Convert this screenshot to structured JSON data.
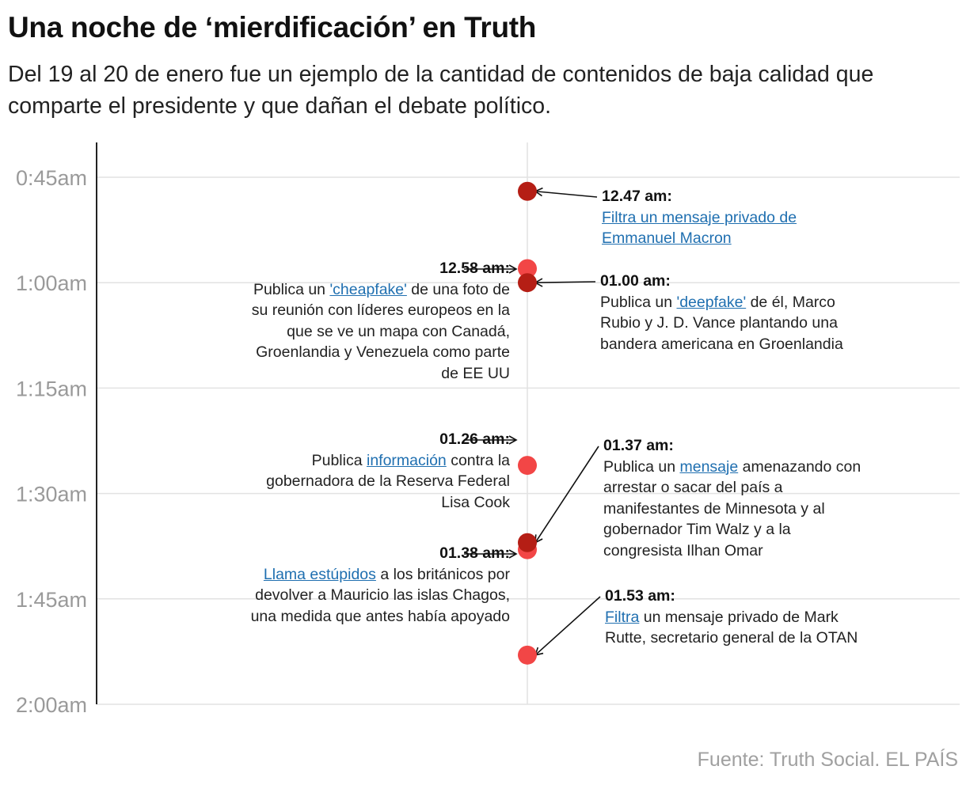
{
  "title": "Una noche de ‘mierdificación’ en Truth",
  "subtitle": "Del 19 al 20 de enero fue un ejemplo de la cantidad de contenidos de baja calidad que comparte el presidente y que dañan el debate político.",
  "source": "Fuente: Truth Social. EL PAÍS",
  "colors": {
    "dark_dot": "#b51e15",
    "light_dot": "#f24646",
    "grid": "#e2e2e2",
    "axis": "#222222",
    "link": "#1f6fb0"
  },
  "chart_data": {
    "type": "scatter",
    "y_axis": {
      "min_minutes_after_midnight": 40,
      "max_minutes_after_midnight": 120,
      "ticks": [
        {
          "minutes": 45,
          "label": "0:45am"
        },
        {
          "minutes": 60,
          "label": "1:00am"
        },
        {
          "minutes": 75,
          "label": "1:15am"
        },
        {
          "minutes": 90,
          "label": "1:30am"
        },
        {
          "minutes": 105,
          "label": "1:45am"
        },
        {
          "minutes": 120,
          "label": "2:00am"
        }
      ],
      "grid": true
    },
    "events": [
      {
        "time": "12.47 am:",
        "minutes": 47,
        "dot": "dark",
        "side": "right",
        "parts": [
          {
            "text": "Filtra un mensaje privado de Emmanuel Macron",
            "link": true
          }
        ]
      },
      {
        "time": "12.58 am:",
        "minutes": 58,
        "dot": "light",
        "side": "left",
        "parts": [
          {
            "text": "Publica un "
          },
          {
            "text": "'cheapfake'",
            "link": true
          },
          {
            "text": " de una foto de su reunión con líderes europeos en la que se ve un mapa con Canadá, Groenlandia y Venezuela como parte de EE UU"
          }
        ]
      },
      {
        "time": "01.00 am:",
        "minutes": 60,
        "dot": "dark",
        "side": "right",
        "parts": [
          {
            "text": "Publica un "
          },
          {
            "text": "'deepfake'",
            "link": true
          },
          {
            "text": " de él, Marco Rubio y J. D. Vance plantando una bandera americana en Groenlandia"
          }
        ]
      },
      {
        "time": "01.26 am:",
        "minutes": 86,
        "dot": "light",
        "side": "left",
        "parts": [
          {
            "text": "Publica "
          },
          {
            "text": "información",
            "link": true
          },
          {
            "text": " contra la gobernadora de la Reserva Federal Lisa Cook"
          }
        ]
      },
      {
        "time": "01.37 am:",
        "minutes": 97,
        "dot": "dark",
        "side": "right",
        "parts": [
          {
            "text": "Publica un "
          },
          {
            "text": "mensaje",
            "link": true
          },
          {
            "text": " amenazando con arrestar o sacar del país a manifestantes de Minnesota y al gobernador Tim Walz y a la congresista Ilhan Omar"
          }
        ]
      },
      {
        "time": "01.38 am:",
        "minutes": 98,
        "dot": "light",
        "side": "left",
        "parts": [
          {
            "text": "Llama estúpidos",
            "link": true
          },
          {
            "text": " a los británicos por devolver a Mauricio las islas Chagos, una medida que antes había apoyado"
          }
        ]
      },
      {
        "time": "01.53 am:",
        "minutes": 113,
        "dot": "light",
        "side": "right",
        "parts": [
          {
            "text": "Filtra",
            "link": true
          },
          {
            "text": " un mensaje privado de Mark Rutte, secretario general de la OTAN"
          }
        ]
      }
    ]
  }
}
